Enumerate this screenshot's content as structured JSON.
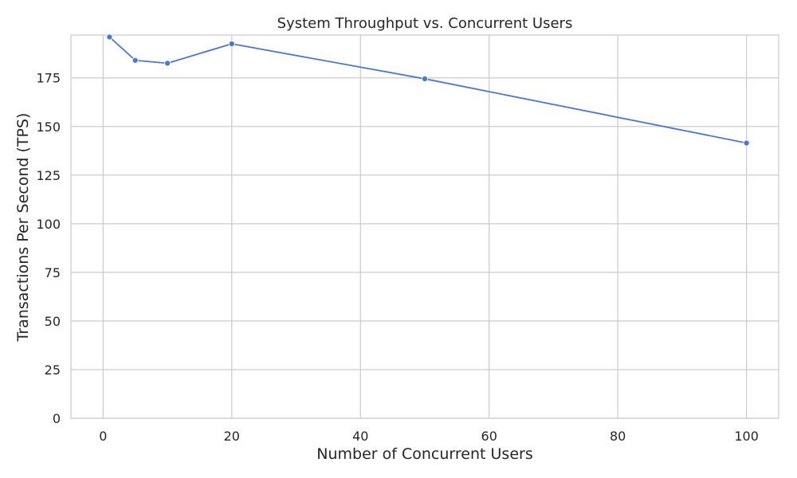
{
  "chart_data": {
    "type": "line",
    "title": "System Throughput vs. Concurrent Users",
    "xlabel": "Number of Concurrent Users",
    "ylabel": "Transactions Per Second (TPS)",
    "xlim": [
      -5,
      105
    ],
    "ylim": [
      0,
      197
    ],
    "xticks": [
      0,
      20,
      40,
      60,
      80,
      100
    ],
    "yticks": [
      0,
      25,
      50,
      75,
      100,
      125,
      150,
      175
    ],
    "grid": true,
    "legend": "none",
    "colors": {
      "line": "#4878cf",
      "grid": "#cccccc",
      "axis": "#cccccc",
      "text": "#262626",
      "background": "#ffffff"
    },
    "series": [
      {
        "x": [
          1,
          5,
          10,
          20,
          50,
          100
        ],
        "y": [
          196,
          184,
          182.5,
          192.5,
          174.5,
          141.5
        ]
      }
    ]
  }
}
